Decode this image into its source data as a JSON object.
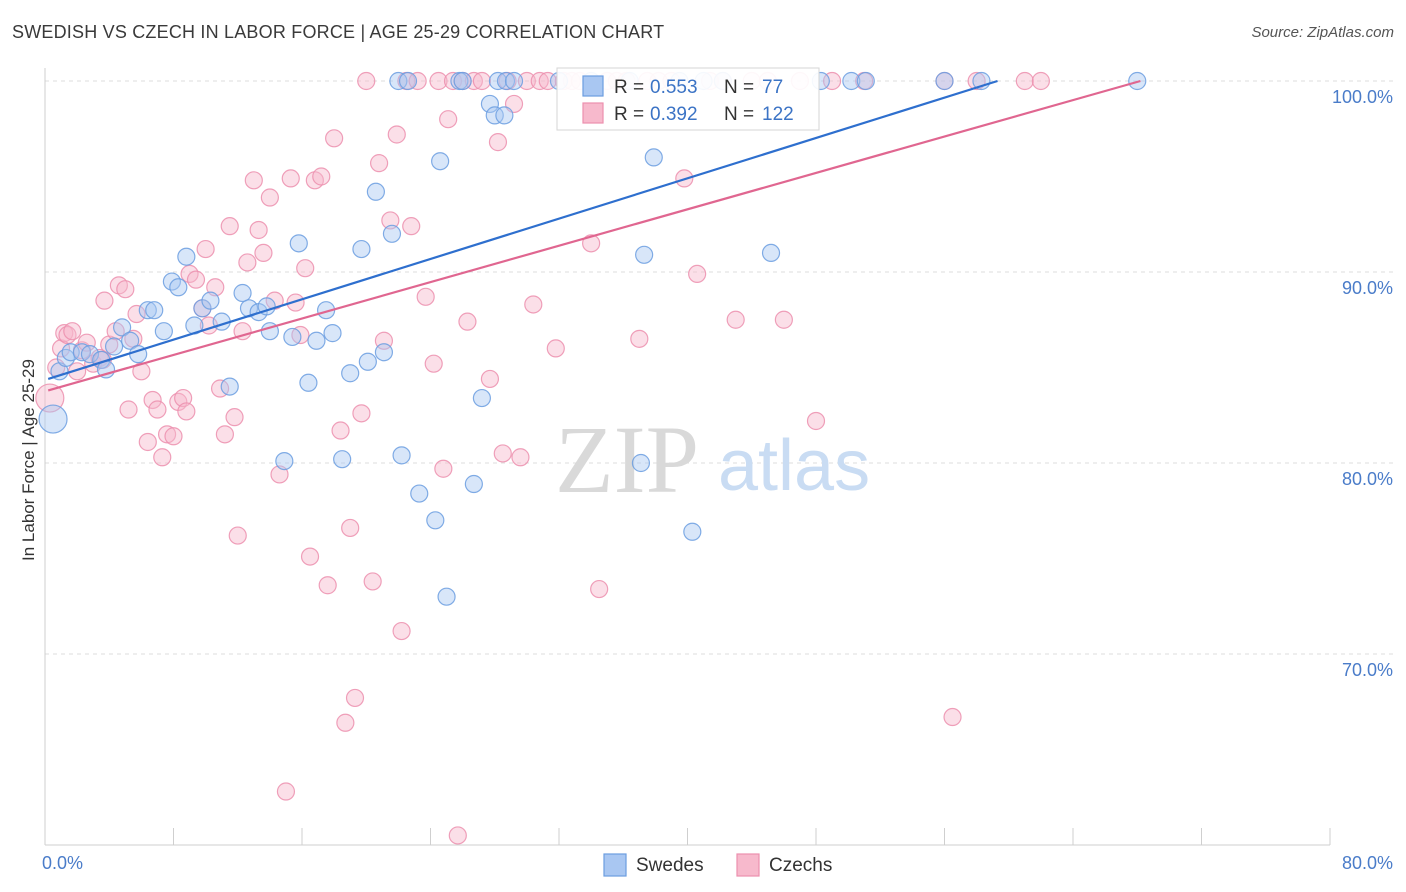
{
  "header": {
    "title": "SWEDISH VS CZECH IN LABOR FORCE | AGE 25-29 CORRELATION CHART",
    "source": "Source: ZipAtlas.com"
  },
  "watermark": {
    "zip": "ZIP",
    "atlas": "atlas"
  },
  "colors": {
    "blue_fill": "#a9c7f2",
    "blue_stroke": "#6b9de0",
    "blue_line": "#2e6fce",
    "pink_fill": "#f7b9cc",
    "pink_stroke": "#ec8fae",
    "pink_line": "#e06690",
    "grid": "#dcdcdc",
    "tick_text": "#4a7cc9"
  },
  "chart_data": {
    "type": "scatter",
    "title": "SWEDISH VS CZECH IN LABOR FORCE | AGE 25-29 CORRELATION CHART",
    "xlabel": "",
    "ylabel": "In Labor Force | Age 25-29",
    "xlim": [
      0,
      80
    ],
    "ylim": [
      60.5,
      101
    ],
    "x_tick_labels": [
      "0.0%",
      "80.0%"
    ],
    "y_ticks": [
      70,
      80,
      90,
      100
    ],
    "y_tick_labels": [
      "70.0%",
      "80.0%",
      "90.0%",
      "100.0%"
    ],
    "grid": true,
    "legend_position": "top-center",
    "legend": [
      {
        "name": "Swedes",
        "r_label": "R = ",
        "r_value": "0.553",
        "n_label": "N = ",
        "n_value": "77"
      },
      {
        "name": "Czechs",
        "r_label": "R = ",
        "r_value": "0.392",
        "n_label": "N = ",
        "n_value": "122"
      }
    ],
    "series": [
      {
        "name": "Swedes",
        "trend": {
          "x": [
            0.2,
            59.3
          ],
          "y": [
            84.4,
            100.0
          ]
        },
        "points": [
          [
            0.5,
            82.3
          ],
          [
            0.9,
            84.8
          ],
          [
            1.3,
            85.5
          ],
          [
            1.6,
            85.8
          ],
          [
            2.3,
            85.8
          ],
          [
            2.8,
            85.7
          ],
          [
            3.5,
            85.4
          ],
          [
            3.8,
            84.9
          ],
          [
            4.3,
            86.1
          ],
          [
            4.8,
            87.1
          ],
          [
            5.3,
            86.4
          ],
          [
            5.8,
            85.7
          ],
          [
            6.4,
            88.0
          ],
          [
            6.8,
            88.0
          ],
          [
            7.4,
            86.9
          ],
          [
            7.9,
            89.5
          ],
          [
            8.3,
            89.2
          ],
          [
            8.8,
            90.8
          ],
          [
            9.3,
            87.2
          ],
          [
            9.8,
            88.1
          ],
          [
            10.3,
            88.5
          ],
          [
            11.0,
            87.4
          ],
          [
            11.5,
            84.0
          ],
          [
            12.3,
            88.9
          ],
          [
            12.7,
            88.1
          ],
          [
            13.3,
            87.9
          ],
          [
            13.8,
            88.2
          ],
          [
            14.0,
            86.9
          ],
          [
            14.9,
            80.1
          ],
          [
            15.4,
            86.6
          ],
          [
            15.8,
            91.5
          ],
          [
            16.4,
            84.2
          ],
          [
            16.9,
            86.4
          ],
          [
            17.5,
            88.0
          ],
          [
            17.9,
            86.8
          ],
          [
            18.5,
            80.2
          ],
          [
            19.0,
            84.7
          ],
          [
            19.7,
            91.2
          ],
          [
            20.1,
            85.3
          ],
          [
            20.6,
            94.2
          ],
          [
            21.1,
            85.8
          ],
          [
            21.6,
            92.0
          ],
          [
            22.2,
            80.4
          ],
          [
            22.0,
            100.0
          ],
          [
            22.6,
            100.0
          ],
          [
            23.3,
            78.4
          ],
          [
            24.3,
            77.0
          ],
          [
            24.6,
            95.8
          ],
          [
            25.0,
            73.0
          ],
          [
            25.8,
            100.0
          ],
          [
            26.0,
            100.0
          ],
          [
            26.7,
            78.9
          ],
          [
            27.2,
            83.4
          ],
          [
            27.7,
            98.8
          ],
          [
            28.2,
            100.0
          ],
          [
            28.7,
            100.0
          ],
          [
            29.2,
            100.0
          ],
          [
            28.0,
            98.2
          ],
          [
            28.6,
            98.2
          ],
          [
            32.0,
            100.0
          ],
          [
            34.0,
            100.0
          ],
          [
            36.4,
            100.0
          ],
          [
            37.1,
            80.0
          ],
          [
            37.3,
            90.9
          ],
          [
            37.9,
            96.0
          ],
          [
            39.5,
            100.0
          ],
          [
            40.3,
            76.4
          ],
          [
            41.0,
            100.0
          ],
          [
            42.2,
            100.0
          ],
          [
            45.2,
            91.0
          ],
          [
            48.3,
            100.0
          ],
          [
            50.2,
            100.0
          ],
          [
            51.1,
            100.0
          ],
          [
            56.0,
            100.0
          ],
          [
            58.3,
            100.0
          ],
          [
            68.0,
            100.0
          ]
        ]
      },
      {
        "name": "Czechs",
        "trend": {
          "x": [
            0.2,
            68.2
          ],
          "y": [
            83.8,
            100.0
          ]
        },
        "points": [
          [
            0.3,
            83.4
          ],
          [
            0.7,
            85.0
          ],
          [
            1.0,
            86.0
          ],
          [
            1.2,
            86.8
          ],
          [
            1.4,
            86.7
          ],
          [
            1.7,
            86.9
          ],
          [
            2.0,
            84.8
          ],
          [
            2.3,
            85.9
          ],
          [
            2.6,
            86.3
          ],
          [
            3.0,
            85.2
          ],
          [
            3.4,
            85.5
          ],
          [
            3.6,
            85.4
          ],
          [
            3.7,
            88.5
          ],
          [
            4.0,
            86.2
          ],
          [
            4.4,
            86.9
          ],
          [
            4.6,
            89.3
          ],
          [
            5.0,
            89.1
          ],
          [
            5.2,
            82.8
          ],
          [
            5.5,
            86.5
          ],
          [
            5.7,
            87.8
          ],
          [
            6.0,
            84.8
          ],
          [
            6.4,
            81.1
          ],
          [
            6.7,
            83.3
          ],
          [
            7.0,
            82.8
          ],
          [
            7.3,
            80.3
          ],
          [
            7.6,
            81.5
          ],
          [
            8.0,
            81.4
          ],
          [
            8.3,
            83.2
          ],
          [
            8.6,
            83.4
          ],
          [
            8.8,
            82.7
          ],
          [
            9.0,
            89.9
          ],
          [
            9.4,
            89.6
          ],
          [
            9.8,
            88.1
          ],
          [
            10.0,
            91.2
          ],
          [
            10.2,
            87.2
          ],
          [
            10.6,
            89.2
          ],
          [
            10.9,
            83.9
          ],
          [
            11.2,
            81.5
          ],
          [
            11.5,
            92.4
          ],
          [
            11.8,
            82.4
          ],
          [
            12.0,
            76.2
          ],
          [
            12.3,
            86.9
          ],
          [
            12.6,
            90.5
          ],
          [
            13.0,
            94.8
          ],
          [
            13.3,
            92.2
          ],
          [
            13.6,
            91.0
          ],
          [
            14.0,
            93.9
          ],
          [
            14.3,
            88.5
          ],
          [
            14.6,
            79.4
          ],
          [
            15.0,
            62.8
          ],
          [
            15.3,
            94.9
          ],
          [
            15.6,
            88.4
          ],
          [
            15.9,
            86.7
          ],
          [
            16.2,
            90.2
          ],
          [
            16.5,
            75.1
          ],
          [
            16.8,
            94.8
          ],
          [
            17.2,
            95.0
          ],
          [
            17.6,
            73.6
          ],
          [
            18.0,
            97.0
          ],
          [
            18.4,
            81.7
          ],
          [
            18.7,
            66.4
          ],
          [
            19.0,
            76.6
          ],
          [
            19.3,
            67.7
          ],
          [
            19.7,
            82.6
          ],
          [
            20.0,
            100.0
          ],
          [
            20.4,
            73.8
          ],
          [
            20.8,
            95.7
          ],
          [
            21.1,
            86.4
          ],
          [
            21.5,
            92.7
          ],
          [
            21.9,
            97.2
          ],
          [
            22.2,
            71.2
          ],
          [
            22.5,
            100.0
          ],
          [
            22.8,
            92.4
          ],
          [
            23.2,
            100.0
          ],
          [
            23.7,
            88.7
          ],
          [
            24.2,
            85.2
          ],
          [
            24.5,
            100.0
          ],
          [
            24.8,
            79.7
          ],
          [
            25.1,
            98.0
          ],
          [
            25.4,
            100.0
          ],
          [
            25.7,
            60.5
          ],
          [
            26.0,
            100.0
          ],
          [
            26.3,
            87.4
          ],
          [
            26.7,
            100.0
          ],
          [
            27.2,
            100.0
          ],
          [
            27.7,
            84.4
          ],
          [
            28.2,
            96.8
          ],
          [
            28.5,
            80.5
          ],
          [
            28.8,
            100.0
          ],
          [
            29.2,
            98.8
          ],
          [
            29.6,
            80.3
          ],
          [
            30.0,
            100.0
          ],
          [
            30.4,
            88.3
          ],
          [
            30.8,
            100.0
          ],
          [
            31.3,
            100.0
          ],
          [
            31.8,
            86.0
          ],
          [
            32.3,
            100.0
          ],
          [
            32.8,
            100.0
          ],
          [
            33.3,
            100.0
          ],
          [
            34.0,
            91.5
          ],
          [
            34.5,
            73.4
          ],
          [
            35.0,
            100.0
          ],
          [
            35.6,
            100.0
          ],
          [
            36.2,
            100.0
          ],
          [
            37.0,
            86.5
          ],
          [
            37.5,
            100.0
          ],
          [
            38.2,
            100.0
          ],
          [
            39.0,
            100.0
          ],
          [
            39.8,
            94.9
          ],
          [
            40.6,
            89.9
          ],
          [
            41.4,
            100.0
          ],
          [
            42.2,
            100.0
          ],
          [
            43.0,
            87.5
          ],
          [
            44.0,
            100.0
          ],
          [
            45.0,
            100.0
          ],
          [
            46.0,
            87.5
          ],
          [
            47.0,
            100.0
          ],
          [
            48.0,
            82.2
          ],
          [
            49.0,
            100.0
          ],
          [
            51.0,
            100.0
          ],
          [
            56.0,
            100.0
          ],
          [
            56.5,
            66.7
          ],
          [
            58.0,
            100.0
          ],
          [
            61.0,
            100.0
          ],
          [
            62.0,
            100.0
          ]
        ]
      }
    ]
  }
}
